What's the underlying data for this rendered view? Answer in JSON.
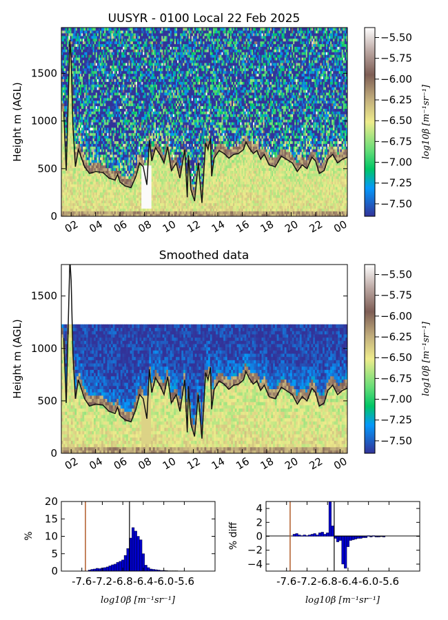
{
  "chart_data": [
    {
      "type": "heatmap",
      "title": "UUSYR - 0100 Local 22 Feb 2025",
      "xlabel": "",
      "ylabel": "Height m (AGL)",
      "x_ticks": [
        "02",
        "04",
        "06",
        "08",
        "10",
        "12",
        "14",
        "16",
        "18",
        "20",
        "22",
        "00"
      ],
      "x_range_hours": [
        1.2,
        24.6
      ],
      "y_ticks": [
        0,
        500,
        1000,
        1500
      ],
      "ylim": [
        0,
        1980
      ],
      "colorbar": {
        "label": "log10β [m⁻¹sr⁻¹]",
        "ticks": [
          "-5.50",
          "-5.75",
          "-6.00",
          "-6.25",
          "-6.50",
          "-6.75",
          "-7.00",
          "-7.25",
          "-7.50"
        ],
        "range": [
          -7.65,
          -5.38
        ],
        "colormap": "terrain"
      },
      "layer_height_line": {
        "x": [
          1.4,
          1.6,
          1.9,
          2.0,
          2.15,
          2.35,
          2.6,
          3.1,
          3.5,
          4.0,
          4.6,
          5.1,
          5.6,
          5.8,
          6.0,
          6.4,
          6.9,
          7.3,
          7.6,
          7.9,
          8.2,
          8.4,
          8.6,
          8.9,
          9.3,
          9.6,
          9.9,
          10.2,
          10.6,
          10.9,
          11.3,
          11.5,
          11.6,
          11.8,
          12.1,
          12.4,
          12.7,
          13.0,
          13.2,
          13.4,
          13.5,
          13.7,
          14.1,
          14.5,
          14.9,
          15.3,
          15.7,
          16.1,
          16.3,
          16.6,
          16.9,
          17.2,
          17.5,
          17.8,
          18.2,
          18.7,
          19.2,
          19.6,
          20.1,
          20.5,
          20.9,
          21.3,
          21.7,
          22.0,
          22.3,
          22.7,
          23.0,
          23.4,
          23.8,
          24.2,
          24.6
        ],
        "y": [
          1100,
          480,
          1850,
          1650,
          950,
          520,
          700,
          520,
          450,
          470,
          460,
          400,
          380,
          440,
          360,
          320,
          300,
          420,
          560,
          520,
          330,
          800,
          580,
          720,
          640,
          560,
          730,
          480,
          560,
          400,
          700,
          200,
          640,
          280,
          160,
          560,
          140,
          770,
          700,
          820,
          420,
          610,
          690,
          660,
          610,
          650,
          660,
          700,
          780,
          710,
          660,
          690,
          600,
          650,
          540,
          520,
          630,
          600,
          560,
          470,
          540,
          500,
          620,
          580,
          450,
          480,
          600,
          650,
          560,
          600,
          620
        ]
      }
    },
    {
      "type": "heatmap",
      "title": "Smoothed data",
      "xlabel": "",
      "ylabel": "Height m (AGL)",
      "x_ticks": [
        "02",
        "04",
        "06",
        "08",
        "10",
        "12",
        "14",
        "16",
        "18",
        "20",
        "22",
        "00"
      ],
      "x_range_hours": [
        1.2,
        24.6
      ],
      "y_ticks": [
        0,
        500,
        1000,
        1500
      ],
      "ylim": [
        0,
        1800
      ],
      "data_top": 1230,
      "colorbar": {
        "label": "log10β [m⁻¹sr⁻¹]",
        "ticks": [
          "-5.50",
          "-5.75",
          "-6.00",
          "-6.25",
          "-6.50",
          "-6.75",
          "-7.00",
          "-7.25",
          "-7.50"
        ],
        "range": [
          -7.65,
          -5.38
        ],
        "colormap": "terrain"
      }
    },
    {
      "type": "bar",
      "title": "",
      "xlabel": "log10β [m⁻¹sr⁻¹]",
      "ylabel": "%",
      "x_ticks": [
        "-7.6",
        "-7.2",
        "-6.8",
        "-6.4",
        "-6.0",
        "-5.6"
      ],
      "xlim": [
        -8.0,
        -5.0
      ],
      "ylim": [
        0,
        20
      ],
      "y_ticks": [
        0,
        5,
        10,
        15,
        20
      ],
      "vlines": [
        -7.53,
        -6.67
      ],
      "bin_width": 0.05,
      "x": [
        -7.45,
        -7.4,
        -7.35,
        -7.3,
        -7.25,
        -7.2,
        -7.15,
        -7.1,
        -7.05,
        -7.0,
        -6.95,
        -6.9,
        -6.85,
        -6.8,
        -6.75,
        -6.7,
        -6.65,
        -6.6,
        -6.55,
        -6.5,
        -6.45,
        -6.4,
        -6.35,
        -6.3,
        -6.25,
        -6.2,
        -6.15,
        -6.1,
        -6.05,
        -6.0,
        -5.95,
        -5.9,
        -5.85,
        -5.8,
        -5.75,
        -5.7
      ],
      "values": [
        0.3,
        0.5,
        0.6,
        0.8,
        0.7,
        0.9,
        1.0,
        1.2,
        1.5,
        1.8,
        2.0,
        2.5,
        2.8,
        3.2,
        4.5,
        6.5,
        9.5,
        12.5,
        11.5,
        10.0,
        9.0,
        5.0,
        1.7,
        1.0,
        0.6,
        0.5,
        0.4,
        0.3,
        0.2,
        0.2,
        0.15,
        0.1,
        0.1,
        0.1,
        0.1,
        0.05
      ]
    },
    {
      "type": "bar",
      "title": "",
      "xlabel": "log10β [m⁻¹sr⁻¹]",
      "ylabel": "% diff",
      "x_ticks": [
        "-7.6",
        "-7.2",
        "-6.8",
        "-6.4",
        "-6.0",
        "-5.6"
      ],
      "xlim": [
        -8.0,
        -5.0
      ],
      "ylim": [
        -5,
        5
      ],
      "y_ticks": [
        4,
        2,
        0,
        -2,
        -4
      ],
      "vlines": [
        -7.53,
        -6.67
      ],
      "bin_width": 0.05,
      "x": [
        -7.45,
        -7.4,
        -7.35,
        -7.3,
        -7.25,
        -7.2,
        -7.15,
        -7.1,
        -7.05,
        -7.0,
        -6.95,
        -6.9,
        -6.85,
        -6.8,
        -6.75,
        -6.7,
        -6.65,
        -6.6,
        -6.55,
        -6.5,
        -6.45,
        -6.4,
        -6.35,
        -6.3,
        -6.25,
        -6.2,
        -6.15,
        -6.1,
        -6.05,
        -6.0,
        -5.95,
        -5.9,
        -5.85,
        -5.8,
        -5.75,
        -5.7
      ],
      "values": [
        0.3,
        0.4,
        0.2,
        0.1,
        0.2,
        0.1,
        0.2,
        0.3,
        0.4,
        0.2,
        0.5,
        0.6,
        0.3,
        0.5,
        5.0,
        1.5,
        -0.3,
        -0.8,
        -0.6,
        -4.0,
        -4.6,
        -1.5,
        -0.6,
        -0.5,
        -0.4,
        -0.3,
        -0.3,
        -0.2,
        -0.2,
        0.1,
        -0.1,
        0.1,
        -0.1,
        -0.1,
        0.0,
        -0.1
      ]
    }
  ]
}
